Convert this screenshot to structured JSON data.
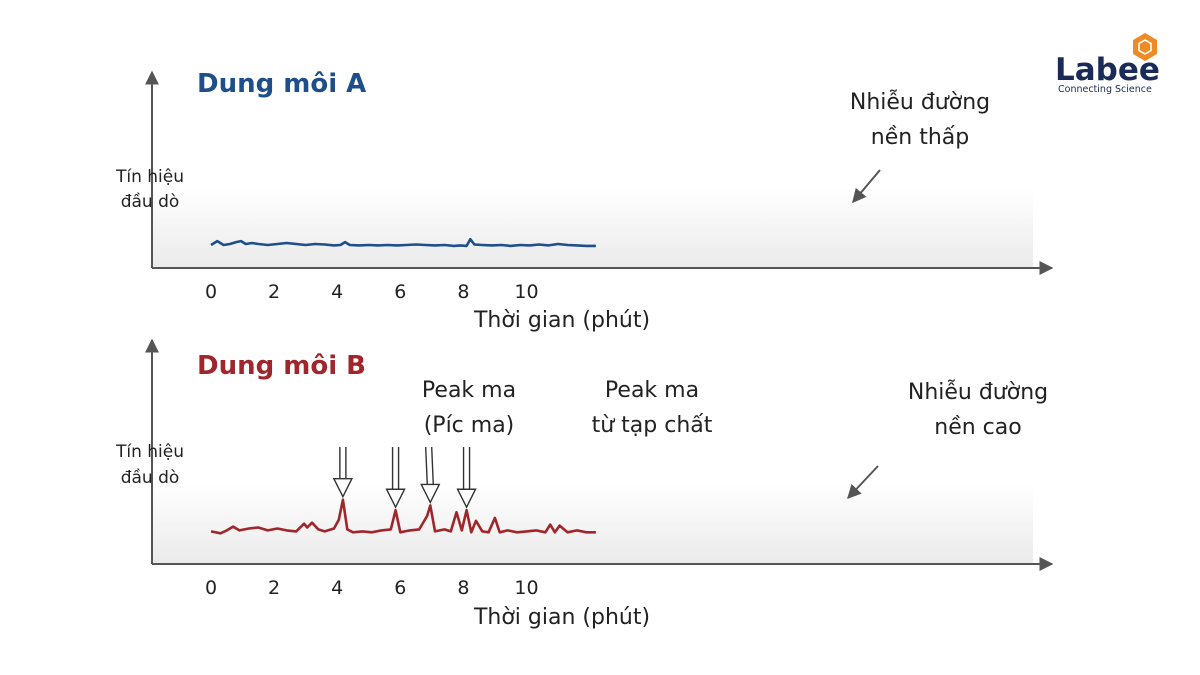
{
  "logo": {
    "name": "Labee",
    "tagline": "Connecting Science"
  },
  "colors": {
    "solvent_a": "#1e4f8a",
    "solvent_b": "#a0262c",
    "axis": "#555555"
  },
  "chart_data": [
    {
      "type": "line",
      "title": "Dung môi A",
      "ylabel_lines": [
        "Tín hiệu",
        "đầu dò"
      ],
      "xlabel": "Thời gian (phút)",
      "xticks": [
        0,
        2,
        4,
        6,
        8,
        10
      ],
      "xlim": [
        -1.9,
        13.5
      ],
      "ylim": [
        0,
        10
      ],
      "y_axis_ticks": false,
      "series": [
        {
          "color": "#1e4f8a",
          "x": [
            0,
            0.2,
            0.4,
            0.6,
            0.8,
            0.95,
            1.1,
            1.3,
            1.5,
            1.8,
            2.1,
            2.4,
            2.7,
            3.0,
            3.3,
            3.6,
            3.9,
            4.1,
            4.25,
            4.4,
            4.7,
            5.0,
            5.3,
            5.6,
            5.9,
            6.2,
            6.5,
            6.8,
            7.1,
            7.4,
            7.7,
            7.9,
            8.1,
            8.22,
            8.35,
            8.6,
            8.9,
            9.2,
            9.5,
            9.8,
            10.1,
            10.4,
            10.7,
            11.0,
            11.3,
            11.6,
            11.9,
            12.2
          ],
          "y": [
            2.4,
            2.8,
            2.4,
            2.5,
            2.7,
            2.8,
            2.5,
            2.6,
            2.5,
            2.4,
            2.5,
            2.6,
            2.5,
            2.4,
            2.5,
            2.45,
            2.35,
            2.4,
            2.7,
            2.4,
            2.35,
            2.4,
            2.35,
            2.4,
            2.35,
            2.4,
            2.45,
            2.4,
            2.35,
            2.4,
            2.3,
            2.35,
            2.3,
            3.0,
            2.45,
            2.4,
            2.35,
            2.4,
            2.3,
            2.4,
            2.35,
            2.45,
            2.35,
            2.5,
            2.4,
            2.35,
            2.3,
            2.3
          ]
        }
      ],
      "annotations": [
        {
          "lines": [
            "Nhiễu đường",
            "nền thấp"
          ],
          "target_x": 10.1,
          "target_y": 3.0
        }
      ]
    },
    {
      "type": "line",
      "title": "Dung môi B",
      "ylabel_lines": [
        "Tín hiệu",
        "đầu dò"
      ],
      "xlabel": "Thời gian (phút)",
      "xticks": [
        0,
        2,
        4,
        6,
        8,
        10
      ],
      "xlim": [
        -1.9,
        13.5
      ],
      "ylim": [
        0,
        10
      ],
      "y_axis_ticks": false,
      "series": [
        {
          "color": "#a0262c",
          "x": [
            0,
            0.3,
            0.5,
            0.7,
            0.9,
            1.2,
            1.5,
            1.8,
            2.1,
            2.4,
            2.7,
            2.95,
            3.05,
            3.2,
            3.4,
            3.6,
            3.9,
            4.05,
            4.18,
            4.32,
            4.5,
            4.8,
            5.1,
            5.4,
            5.7,
            5.85,
            6.0,
            6.3,
            6.6,
            6.85,
            6.95,
            7.1,
            7.4,
            7.6,
            7.78,
            7.95,
            8.1,
            8.25,
            8.4,
            8.6,
            8.8,
            9.0,
            9.15,
            9.4,
            9.7,
            10.0,
            10.3,
            10.6,
            10.75,
            10.9,
            11.05,
            11.3,
            11.6,
            11.9,
            12.2
          ],
          "y": [
            3.4,
            3.2,
            3.5,
            3.9,
            3.5,
            3.7,
            3.8,
            3.5,
            3.7,
            3.5,
            3.4,
            4.2,
            3.8,
            4.3,
            3.6,
            3.4,
            3.7,
            4.6,
            6.7,
            3.6,
            3.3,
            3.4,
            3.3,
            3.5,
            3.6,
            5.6,
            3.3,
            3.5,
            3.6,
            5.0,
            6.1,
            3.4,
            3.6,
            3.4,
            5.4,
            3.5,
            5.6,
            3.3,
            4.5,
            3.4,
            3.3,
            4.8,
            3.3,
            3.5,
            3.3,
            3.4,
            3.5,
            3.3,
            4.1,
            3.3,
            4.0,
            3.3,
            3.5,
            3.3,
            3.3
          ]
        }
      ],
      "annotations": [
        {
          "lines": [
            "Peak ma",
            "(Píc ma)"
          ],
          "arrows": [
            {
              "x": 4.18,
              "y": 6.7,
              "from_dx": 0
            }
          ]
        },
        {
          "lines": [
            "Peak ma",
            "từ tạp chất"
          ],
          "arrows": [
            {
              "x": 5.85,
              "y": 5.6,
              "from_dx": 0
            },
            {
              "x": 6.95,
              "y": 6.1,
              "from_dx": -0.05
            },
            {
              "x": 8.1,
              "y": 5.6,
              "from_dx": 0
            }
          ]
        },
        {
          "lines": [
            "Nhiễu đường",
            "nền cao"
          ],
          "target_x": 10.0,
          "target_y": 4.0
        }
      ]
    }
  ]
}
